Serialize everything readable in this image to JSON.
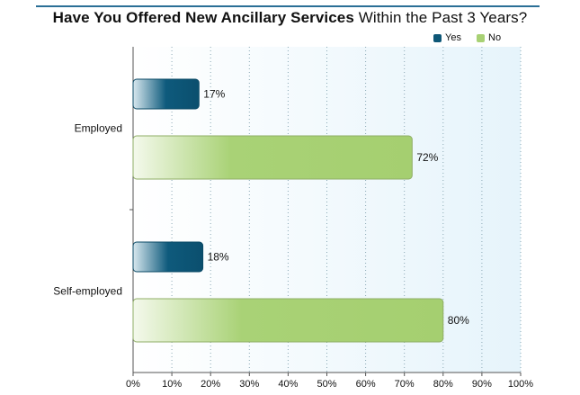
{
  "title_bold": "Have You Offered New Ancillary Services",
  "title_rest": " Within the Past 3 Years?",
  "legend": [
    {
      "label": "Yes",
      "color": "#0e5777"
    },
    {
      "label": "No",
      "color": "#a8d174"
    }
  ],
  "chart_data": {
    "type": "bar",
    "orientation": "horizontal",
    "title": "Have You Offered New Ancillary Services Within the Past 3 Years?",
    "categories": [
      "Employed",
      "Self-employed"
    ],
    "series": [
      {
        "name": "Yes",
        "values": [
          17,
          18
        ],
        "color": "#0e5777"
      },
      {
        "name": "No",
        "values": [
          72,
          80
        ],
        "color": "#a8d174"
      }
    ],
    "data_labels": [
      [
        "17%",
        "72%"
      ],
      [
        "18%",
        "80%"
      ]
    ],
    "xlim": [
      0,
      100
    ],
    "x_ticks": [
      "0%",
      "10%",
      "20%",
      "30%",
      "40%",
      "50%",
      "60%",
      "70%",
      "80%",
      "90%",
      "100%"
    ],
    "grid": "vertical dotted",
    "legend_position": "top-right"
  }
}
